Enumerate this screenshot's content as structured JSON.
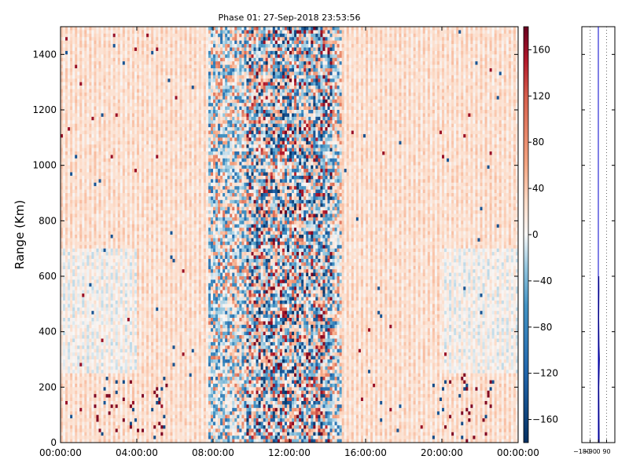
{
  "chart_data": [
    {
      "type": "heatmap",
      "title": "Phase 01: 27-Sep-2018 23:53:56",
      "ylabel": "Range (Km)",
      "xlabel": "",
      "x_ticks": [
        "00:00:00",
        "04:00:00",
        "08:00:00",
        "12:00:00",
        "16:00:00",
        "20:00:00",
        "00:00:00"
      ],
      "y_ticks": [
        0,
        200,
        400,
        600,
        800,
        1000,
        1200,
        1400
      ],
      "ylim": [
        0,
        1500
      ],
      "xlim_hours": [
        0,
        24
      ],
      "grid": false,
      "colormap": "RdBu_r",
      "vmin": -180,
      "vmax": 180,
      "description_of_field": "phase values; strong noise between ~08:00 and ~15:00",
      "colorbar": {
        "ticks": [
          -160,
          -120,
          -80,
          -40,
          0,
          40,
          80,
          120,
          160
        ]
      }
    },
    {
      "type": "line",
      "x_ticks": [
        "−180",
        "−90",
        "0",
        "90"
      ],
      "xlim": [
        -180,
        180
      ],
      "ylim": [
        0,
        1500
      ],
      "grid": true,
      "series": [
        {
          "x": [
            0,
            0,
            0
          ],
          "y": [
            0,
            750,
            1500
          ],
          "color": "#0000cc"
        },
        {
          "x": [
            8,
            6,
            4,
            10,
            6,
            3,
            5,
            4
          ],
          "y": [
            0,
            100,
            200,
            300,
            350,
            450,
            550,
            600
          ],
          "color": "#000080"
        }
      ]
    }
  ],
  "colors": {
    "dark_red": "#67001f",
    "red": "#d6604d",
    "light_red": "#f4a582",
    "white": "#f7f7f7",
    "light_blue": "#92c5de",
    "blue": "#4393c3",
    "dark_blue": "#053061"
  }
}
